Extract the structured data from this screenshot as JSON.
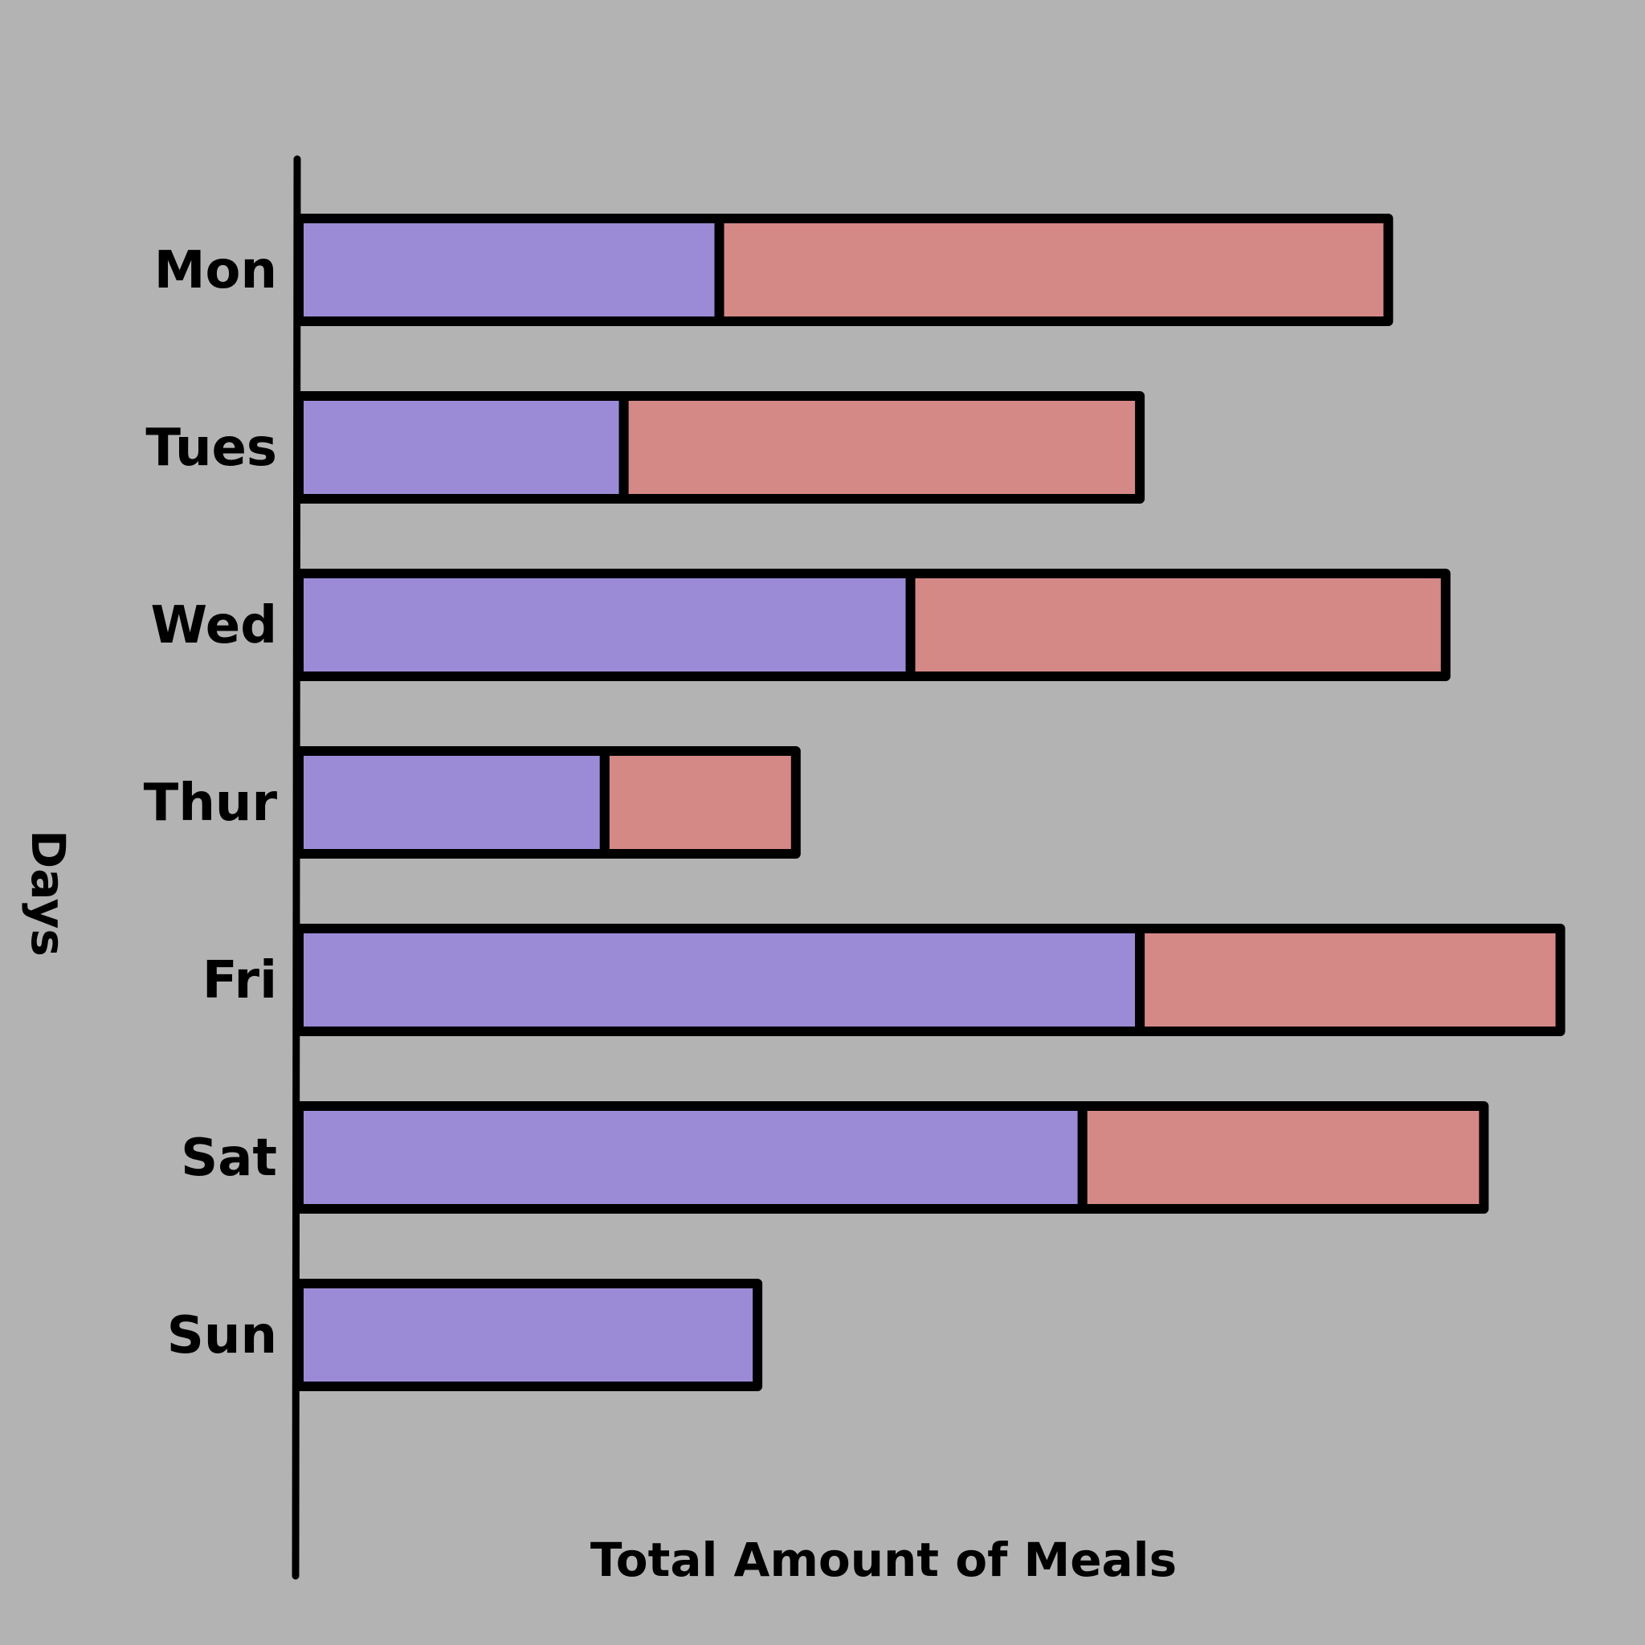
{
  "chart_data": {
    "type": "bar",
    "orientation": "horizontal",
    "stacked": true,
    "categories": [
      "Mon",
      "Tues",
      "Wed",
      "Thur",
      "Fri",
      "Sat",
      "Sun"
    ],
    "series": [
      {
        "values": [
          11,
          8.5,
          16,
          8,
          22,
          20.5,
          12
        ],
        "color": "#9b8bd6"
      },
      {
        "values": [
          17.5,
          13.5,
          14,
          5,
          11,
          10.5,
          0
        ],
        "color": "#d48987"
      }
    ],
    "xlabel": "Total Amount of Meals",
    "ylabel": "Days",
    "xlim": [
      0,
      34.5
    ],
    "grid": false,
    "background": "#b3b3b3",
    "outline_color": "#000000"
  }
}
